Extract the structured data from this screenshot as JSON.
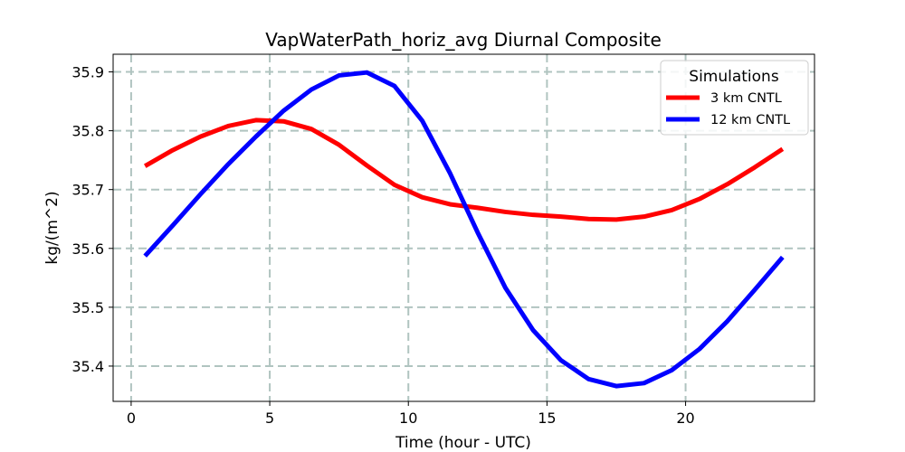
{
  "chart_data": {
    "type": "line",
    "title": "VapWaterPath_horiz_avg Diurnal Composite",
    "xlabel": "Time (hour - UTC)",
    "ylabel": "kg/(m^2)",
    "xlim": [
      -0.65,
      24.65
    ],
    "ylim": [
      35.34,
      35.93
    ],
    "xticks": [
      0,
      5,
      10,
      15,
      20
    ],
    "xtick_labels": [
      "0",
      "5",
      "10",
      "15",
      "20"
    ],
    "yticks": [
      35.4,
      35.5,
      35.6,
      35.7,
      35.8,
      35.9
    ],
    "ytick_labels": [
      "35.4",
      "35.5",
      "35.6",
      "35.7",
      "35.8",
      "35.9"
    ],
    "grid": true,
    "legend": {
      "title": "Simulations",
      "position": "top-right"
    },
    "x": [
      0.5,
      1.5,
      2.5,
      3.5,
      4.5,
      5.5,
      6.5,
      7.5,
      8.5,
      9.5,
      10.5,
      11.5,
      12.5,
      13.5,
      14.5,
      15.5,
      16.5,
      17.5,
      18.5,
      19.5,
      20.5,
      21.5,
      22.5,
      23.5
    ],
    "series": [
      {
        "name": "3 km CNTL",
        "color": "#ff0000",
        "values": [
          35.74,
          35.767,
          35.79,
          35.808,
          35.818,
          35.816,
          35.803,
          35.776,
          35.741,
          35.708,
          35.687,
          35.675,
          35.669,
          35.662,
          35.657,
          35.654,
          35.65,
          35.649,
          35.654,
          35.665,
          35.684,
          35.709,
          35.738,
          35.769
        ]
      },
      {
        "name": "12 km CNTL",
        "color": "#0000ff",
        "values": [
          35.587,
          35.639,
          35.692,
          35.743,
          35.79,
          35.834,
          35.87,
          35.894,
          35.899,
          35.876,
          35.817,
          35.728,
          35.627,
          35.533,
          35.461,
          35.41,
          35.378,
          35.366,
          35.371,
          35.393,
          35.429,
          35.476,
          35.53,
          35.585
        ]
      }
    ]
  }
}
